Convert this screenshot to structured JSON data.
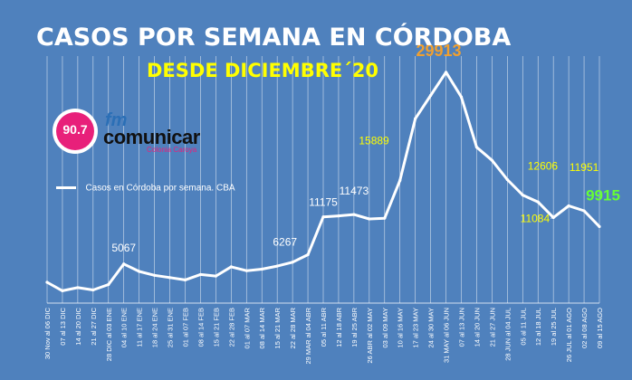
{
  "title": "CASOS POR SEMANA EN CÓRDOBA",
  "subtitle": "DESDE DICIEMBRE´20",
  "logo": {
    "frequency": "90.7",
    "fm": "fm",
    "brand": "comunicar",
    "tagline": "Colonia Caroya"
  },
  "colors": {
    "background": "#4f81bd",
    "line": "#ffffff",
    "title": "#ffffff",
    "subtitle": "#ffff00",
    "peak_label": "#f0a030",
    "last_label": "#66ff33"
  },
  "chart_data": {
    "type": "line",
    "title": "CASOS POR SEMANA EN CÓRDOBA",
    "subtitle": "DESDE DICIEMBRE´20",
    "xlabel": "",
    "ylabel": "",
    "ylim": [
      0,
      32000
    ],
    "grid": "vertical",
    "legend_position": "left",
    "categories": [
      "30 Nov al 06 DIC",
      "07 al 13 DIC",
      "14 al 20 DIC",
      "21 al 27 DIC",
      "28 DIC al 03 ENE",
      "04 al 10 ENE",
      "11 al 17 ENE",
      "18 al 24 ENE",
      "25 al 31 ENE",
      "01 al 07 FEB",
      "08 al 14 FEB",
      "15 al 21 FEB",
      "22 al 28 FEB",
      "01 al 07 MAR",
      "08 al 14 MAR",
      "15 al 21 MAR",
      "22 al 28 MAR",
      "29 MAR al 04 ABR",
      "05 al 11 ABR",
      "12 al 18 ABR",
      "19 al 25 ABR",
      "26 ABR al 02 MAY",
      "03 al 09 MAY",
      "10 al 16 MAY",
      "17 al 23 MAY",
      "24 al 30 MAY",
      "31 MAY al 06 JUN",
      "07 al 13 JUN",
      "14 al 20 JUN",
      "21 al 27 JUN",
      "28 JUN al 04 JUL",
      "05 al 11 JUL",
      "12 al 18 JUL",
      "19 al 25 JUL",
      "26 JUL al 01 AGO",
      "02 al 08 AGO",
      "09 al 15 AGO"
    ],
    "series": [
      {
        "name": "Casos en Córdoba por semana. CBA",
        "values": [
          2700,
          1600,
          2000,
          1700,
          2400,
          5067,
          4100,
          3600,
          3300,
          3000,
          3700,
          3500,
          4700,
          4200,
          4400,
          4800,
          5300,
          6267,
          11175,
          11300,
          11473,
          10900,
          11000,
          15889,
          23900,
          26900,
          29913,
          26700,
          20200,
          18500,
          16000,
          14000,
          13100,
          11084,
          12606,
          11951,
          9915
        ]
      }
    ],
    "annotations": [
      {
        "index": 5,
        "label": "5067",
        "color": "#ffffff"
      },
      {
        "index": 17,
        "label": "6267",
        "color": "#ffffff"
      },
      {
        "index": 18,
        "label": "11175",
        "color": "#ffffff"
      },
      {
        "index": 20,
        "label": "11473",
        "color": "#ffffff"
      },
      {
        "index": 23,
        "label": "15889",
        "color": "#ffff00"
      },
      {
        "index": 26,
        "label": "29913",
        "color": "#f0a030"
      },
      {
        "index": 33,
        "label": "11084",
        "color": "#ffff00"
      },
      {
        "index": 34,
        "label": "12606",
        "color": "#ffff00"
      },
      {
        "index": 35,
        "label": "11951",
        "color": "#ffff00"
      },
      {
        "index": 36,
        "label": "9915",
        "color": "#66ff33"
      }
    ]
  }
}
